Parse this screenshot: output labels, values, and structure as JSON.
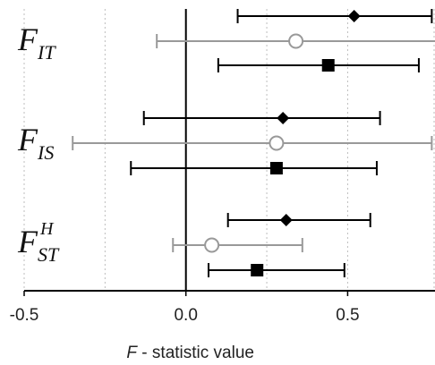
{
  "chart_data": {
    "type": "forest",
    "x_label_prefix": "F",
    "x_label_suffix": " - statistic value",
    "xlim": [
      -0.5,
      0.77
    ],
    "x_ticks": [
      -0.5,
      0.0,
      0.5
    ],
    "x_tick_labels": [
      "-0.5",
      "0.0",
      "0.5"
    ],
    "minor_gridlines": [
      -0.25,
      0.25
    ],
    "vertical_reference_line": 0.0,
    "groups": [
      {
        "label_main": "F",
        "label_sub": "IT",
        "label_sup": "",
        "rows": [
          {
            "marker": "diamond",
            "color": "#000000",
            "value": 0.52,
            "low": 0.16,
            "high": 0.76
          },
          {
            "marker": "circle-open",
            "color": "#999999",
            "value": 0.34,
            "low": -0.09,
            "high": 0.79
          },
          {
            "marker": "square",
            "color": "#000000",
            "value": 0.44,
            "low": 0.1,
            "high": 0.72
          }
        ]
      },
      {
        "label_main": "F",
        "label_sub": "IS",
        "label_sup": "",
        "rows": [
          {
            "marker": "diamond",
            "color": "#000000",
            "value": 0.3,
            "low": -0.13,
            "high": 0.6
          },
          {
            "marker": "circle-open",
            "color": "#999999",
            "value": 0.28,
            "low": -0.35,
            "high": 0.76
          },
          {
            "marker": "square",
            "color": "#000000",
            "value": 0.28,
            "low": -0.17,
            "high": 0.59
          }
        ]
      },
      {
        "label_main": "F",
        "label_sub": "ST",
        "label_sup": "H",
        "rows": [
          {
            "marker": "diamond",
            "color": "#000000",
            "value": 0.31,
            "low": 0.13,
            "high": 0.57
          },
          {
            "marker": "circle-open",
            "color": "#999999",
            "value": 0.08,
            "low": -0.04,
            "high": 0.36
          },
          {
            "marker": "square",
            "color": "#000000",
            "value": 0.22,
            "low": 0.07,
            "high": 0.49
          }
        ]
      }
    ]
  }
}
